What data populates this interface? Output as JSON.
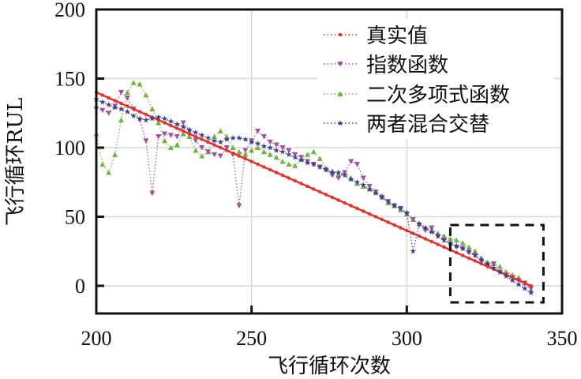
{
  "chart_data": {
    "type": "line",
    "title": "",
    "xlabel": "飞行循环次数",
    "ylabel": "飞行循环RUL",
    "xlim": [
      200,
      350
    ],
    "ylim": [
      -20,
      200
    ],
    "xticks": [
      "200",
      "250",
      "300",
      "350"
    ],
    "yticks": [
      "0",
      "50",
      "100",
      "150",
      "200"
    ],
    "grid": true,
    "legend_position": "top-right",
    "x": [
      200,
      202,
      204,
      206,
      208,
      210,
      212,
      214,
      216,
      218,
      220,
      222,
      224,
      226,
      228,
      230,
      232,
      234,
      236,
      238,
      240,
      242,
      244,
      246,
      248,
      250,
      252,
      254,
      256,
      258,
      260,
      262,
      264,
      266,
      268,
      270,
      272,
      274,
      276,
      278,
      280,
      282,
      284,
      286,
      288,
      290,
      292,
      294,
      296,
      298,
      300,
      302,
      304,
      306,
      308,
      310,
      312,
      314,
      316,
      318,
      320,
      322,
      324,
      326,
      328,
      330,
      332,
      334,
      336,
      338,
      340
    ],
    "series": [
      {
        "name": "真实值",
        "color": "#e8302a",
        "marker": "dot",
        "values": [
          140,
          138,
          136,
          134,
          132,
          130,
          128,
          126,
          124,
          122,
          120,
          118,
          116,
          114,
          112,
          110,
          108,
          106,
          104,
          102,
          100,
          98,
          96,
          94,
          92,
          90,
          88,
          86,
          84,
          82,
          80,
          78,
          76,
          74,
          72,
          70,
          68,
          66,
          64,
          62,
          60,
          58,
          56,
          54,
          52,
          50,
          48,
          46,
          44,
          42,
          40,
          38,
          36,
          34,
          32,
          30,
          28,
          26,
          24,
          22,
          20,
          18,
          16,
          14,
          12,
          10,
          8,
          6,
          4,
          2,
          0
        ]
      },
      {
        "name": "指数函数",
        "color": "#a0509f",
        "marker": "triangle-down",
        "values": [
          128,
          127,
          125,
          130,
          140,
          136,
          128,
          120,
          105,
          67,
          108,
          110,
          109,
          108,
          118,
          112,
          105,
          100,
          97,
          95,
          94,
          100,
          95,
          58,
          98,
          105,
          112,
          108,
          104,
          102,
          100,
          98,
          95,
          93,
          90,
          88,
          86,
          84,
          80,
          78,
          82,
          90,
          88,
          78,
          72,
          68,
          64,
          61,
          58,
          56,
          52,
          48,
          44,
          40,
          42,
          36,
          33,
          30,
          28,
          27,
          24,
          22,
          18,
          14,
          16,
          10,
          8,
          6,
          4,
          2,
          -2
        ]
      },
      {
        "name": "二次多项式函数",
        "color": "#6cb33f",
        "marker": "triangle-up",
        "values": [
          110,
          88,
          82,
          95,
          120,
          140,
          147,
          146,
          138,
          128,
          118,
          105,
          100,
          102,
          110,
          108,
          98,
          94,
          97,
          108,
          112,
          108,
          100,
          97,
          95,
          98,
          100,
          97,
          95,
          93,
          90,
          88,
          87,
          92,
          95,
          97,
          92,
          85,
          83,
          80,
          82,
          78,
          74,
          72,
          70,
          68,
          65,
          60,
          58,
          55,
          52,
          48,
          45,
          42,
          40,
          38,
          36,
          34,
          33,
          31,
          28,
          25,
          20,
          17,
          16,
          14,
          10,
          8,
          6,
          2,
          -3
        ]
      },
      {
        "name": "两者混合交替",
        "color": "#3c3f8f",
        "marker": "star",
        "values": [
          135,
          133,
          131,
          129,
          128,
          126,
          123,
          121,
          120,
          121,
          122,
          121,
          119,
          117,
          115,
          113,
          111,
          109,
          107,
          105,
          104,
          106,
          107,
          107,
          106,
          104,
          103,
          101,
          100,
          98,
          97,
          95,
          93,
          91,
          89,
          88,
          86,
          84,
          82,
          82,
          80,
          77,
          75,
          73,
          70,
          67,
          64,
          61,
          58,
          56,
          53,
          25,
          45,
          42,
          39,
          36,
          33,
          31,
          29,
          27,
          25,
          22,
          19,
          16,
          13,
          10,
          7,
          4,
          1,
          -2,
          -5
        ]
      }
    ],
    "annotations": [
      {
        "type": "dashed-box",
        "x": [
          314,
          344
        ],
        "y": [
          -12,
          44
        ]
      }
    ]
  }
}
